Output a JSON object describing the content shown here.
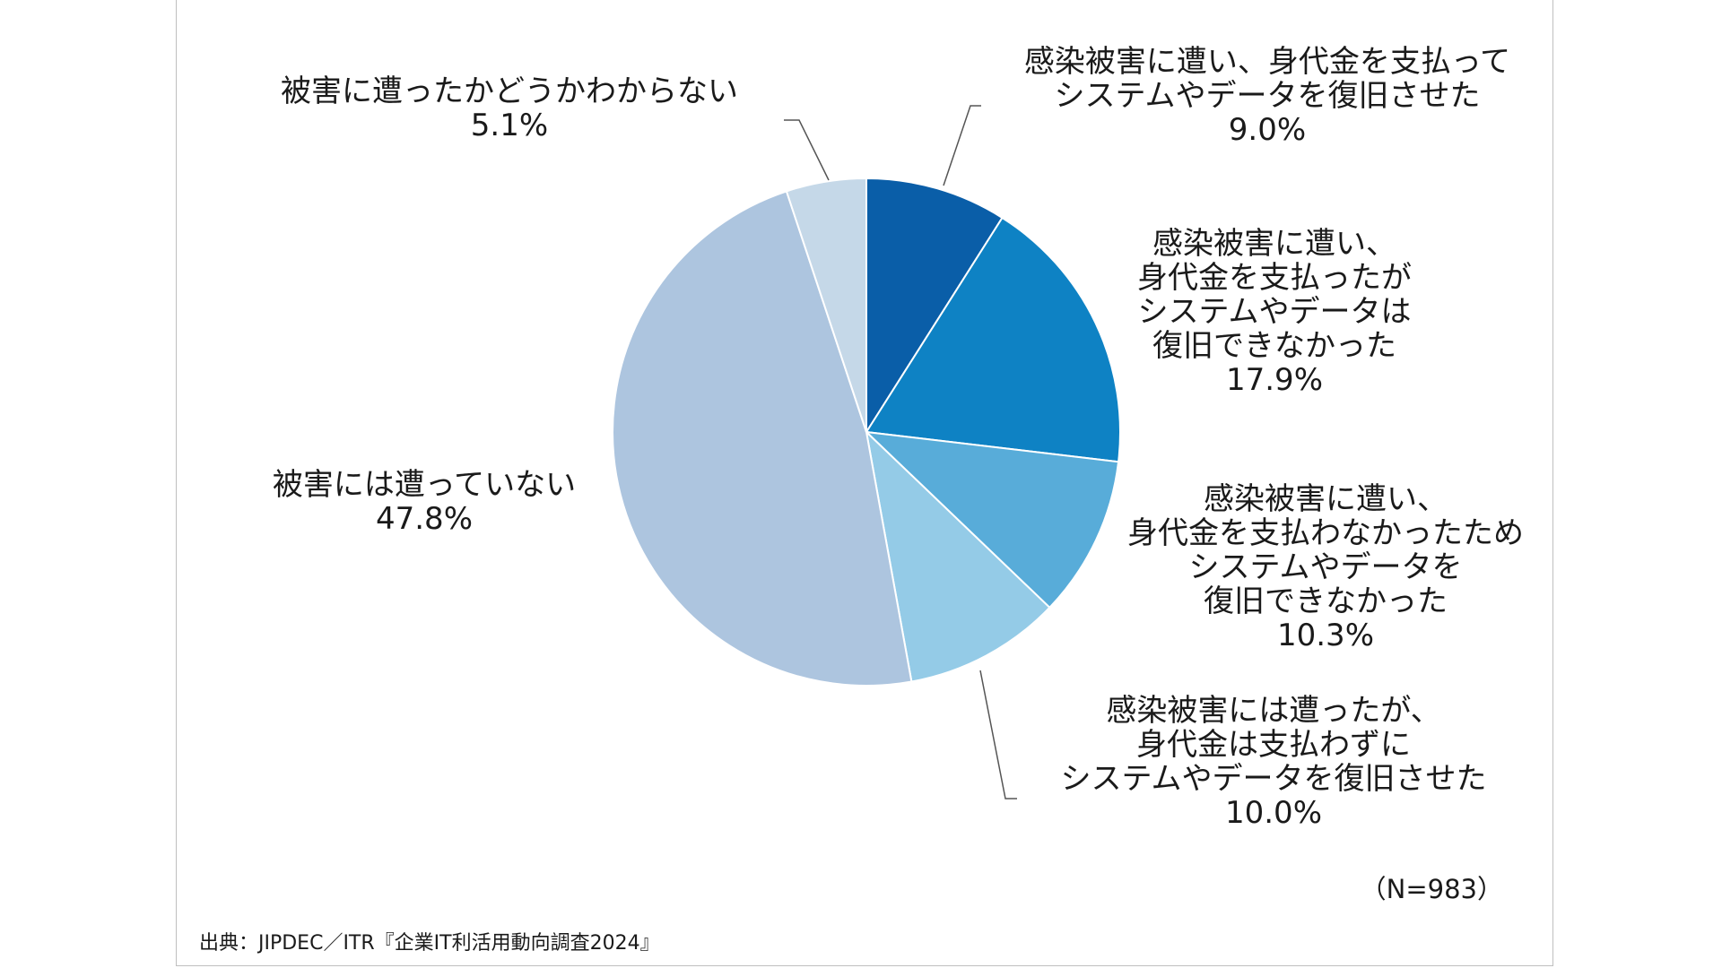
{
  "chart_data": {
    "type": "pie",
    "start_angle_deg": 0,
    "direction": "clockwise",
    "slices": [
      {
        "label_lines": [
          "感染被害に遭い、身代金を支払って",
          "システムやデータを復旧させた"
        ],
        "value": 9.0,
        "value_label": "9.0%",
        "color": "#0a5ea8"
      },
      {
        "label_lines": [
          "感染被害に遭い、",
          "身代金を支払ったが",
          "システムやデータは",
          "復旧できなかった"
        ],
        "value": 17.9,
        "value_label": "17.9%",
        "color": "#0e82c4"
      },
      {
        "label_lines": [
          "感染被害に遭い、",
          "身代金を支払わなかったため",
          "システムやデータを",
          "復旧できなかった"
        ],
        "value": 10.3,
        "value_label": "10.3%",
        "color": "#58acd9"
      },
      {
        "label_lines": [
          "感染被害には遭ったが、",
          "身代金は支払わずに",
          "システムやデータを復旧させた"
        ],
        "value": 10.0,
        "value_label": "10.0%",
        "color": "#94cbe7"
      },
      {
        "label_lines": [
          "被害には遭っていない"
        ],
        "value": 47.8,
        "value_label": "47.8%",
        "color": "#adc5df"
      },
      {
        "label_lines": [
          "被害に遭ったかどうかわからない"
        ],
        "value": 5.1,
        "value_label": "5.1%",
        "color": "#c5d8e8"
      }
    ],
    "n_label": "（N=983）",
    "source": "出典：JIPDEC／ITR『企業IT利活用動向調査2024』"
  }
}
